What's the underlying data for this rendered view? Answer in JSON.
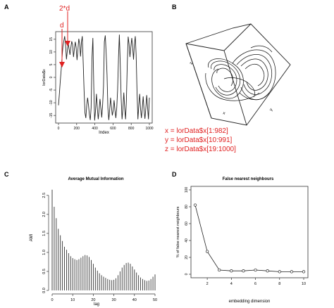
{
  "panels": {
    "A": {
      "letter": "A",
      "arrow_labels": [
        "2*d",
        "d"
      ],
      "chart_data": {
        "type": "line",
        "xlabel": "Index",
        "ylabel": "lorData$x",
        "xlim": [
          0,
          1000
        ],
        "ylim": [
          -18,
          18
        ],
        "xticks": [
          0,
          200,
          400,
          600,
          800,
          1000
        ],
        "yticks": [
          -15,
          -10,
          -5,
          0,
          5,
          10,
          15
        ],
        "y": [
          -11.0,
          -6.4,
          -1.7,
          2.9,
          7.6,
          12.2,
          14.2,
          16.2,
          13.0,
          7.1,
          10.4,
          13.7,
          11.3,
          8.9,
          11.6,
          14.2,
          12.9,
          8.0,
          11.0,
          14.0,
          11.9,
          6.8,
          11.0,
          15.2,
          13.1,
          8.2,
          13.9,
          16.2,
          5.6,
          -5.0,
          -14.0,
          -16.0,
          -11.0,
          -8.0,
          -11.0,
          -14.5,
          -16.8,
          -12.0,
          8.0,
          15.5,
          -4.0,
          -17.0,
          -13.0,
          -6.5,
          -12.0,
          -16.5,
          -13.0,
          -8.5,
          -12.0,
          -15.8,
          -11.0,
          -3.5,
          14.0,
          16.5,
          10.0,
          1.0,
          -12.0,
          -16.8,
          -13.0,
          -8.0,
          -11.5,
          -15.0,
          -13.0,
          -9.0,
          -13.0,
          -16.0,
          -12.0,
          -5.0,
          8.0,
          16.8,
          5.0,
          -8.0,
          -16.5,
          -12.5,
          -6.0,
          -12.0,
          -16.5,
          -9.0,
          6.0,
          16.0,
          13.0,
          8.0,
          12.0,
          15.5,
          12.0,
          7.0,
          13.0,
          16.2,
          9.0,
          -6.0,
          -16.5,
          -11.0,
          -6.5,
          -12.5,
          -16.0,
          -12.0,
          -7.5,
          -13.0,
          -16.3,
          -12.0,
          -7.0,
          -12.0,
          -16.5,
          -8.0
        ]
      }
    },
    "B": {
      "letter": "B",
      "axis_letters": {
        "z": "z",
        "x": "x",
        "y": "y"
      },
      "code_lines": [
        "x = lorData$x[1:982]",
        "y = lorData$x[10:991]",
        "z = lorData$x[19:1000]"
      ]
    },
    "C": {
      "letter": "C",
      "chart_data": {
        "type": "bar",
        "title": "Average Mutual Information",
        "xlabel": "lag",
        "ylabel": "AMI",
        "xlim": [
          0,
          50
        ],
        "ylim": [
          0,
          2.7
        ],
        "xticks": [
          0,
          10,
          20,
          30,
          40,
          50
        ],
        "yticks": [
          0.0,
          0.5,
          1.0,
          1.5,
          2.0,
          2.5
        ],
        "x": [
          0,
          1,
          2,
          3,
          4,
          5,
          6,
          7,
          8,
          9,
          10,
          11,
          12,
          13,
          14,
          15,
          16,
          17,
          18,
          19,
          20,
          21,
          22,
          23,
          24,
          25,
          26,
          27,
          28,
          29,
          30,
          31,
          32,
          33,
          34,
          35,
          36,
          37,
          38,
          39,
          40,
          41,
          42,
          43,
          44,
          45,
          46,
          47,
          48,
          49,
          50
        ],
        "values": [
          2.65,
          2.2,
          1.9,
          1.62,
          1.45,
          1.3,
          1.15,
          1.07,
          0.98,
          0.9,
          0.85,
          0.82,
          0.8,
          0.82,
          0.86,
          0.9,
          0.93,
          0.92,
          0.88,
          0.8,
          0.7,
          0.6,
          0.52,
          0.45,
          0.4,
          0.36,
          0.33,
          0.3,
          0.28,
          0.27,
          0.28,
          0.32,
          0.4,
          0.5,
          0.6,
          0.67,
          0.72,
          0.73,
          0.7,
          0.63,
          0.55,
          0.47,
          0.4,
          0.34,
          0.3,
          0.27,
          0.25,
          0.26,
          0.3,
          0.36,
          0.42
        ]
      }
    },
    "D": {
      "letter": "D",
      "chart_data": {
        "type": "line",
        "title": "False nearest neighbours",
        "xlabel": "embedding dimension",
        "ylabel": "% of false nearest neighbours",
        "xlim": [
          1,
          10
        ],
        "ylim": [
          0,
          100
        ],
        "xticks": [
          2,
          4,
          6,
          8,
          10
        ],
        "yticks": [
          0,
          20,
          40,
          60,
          80,
          100
        ],
        "x": [
          1,
          2,
          3,
          4,
          5,
          6,
          7,
          8,
          9,
          10
        ],
        "values": [
          82,
          27,
          5,
          4,
          4,
          5,
          4,
          3,
          3,
          3
        ]
      }
    }
  }
}
